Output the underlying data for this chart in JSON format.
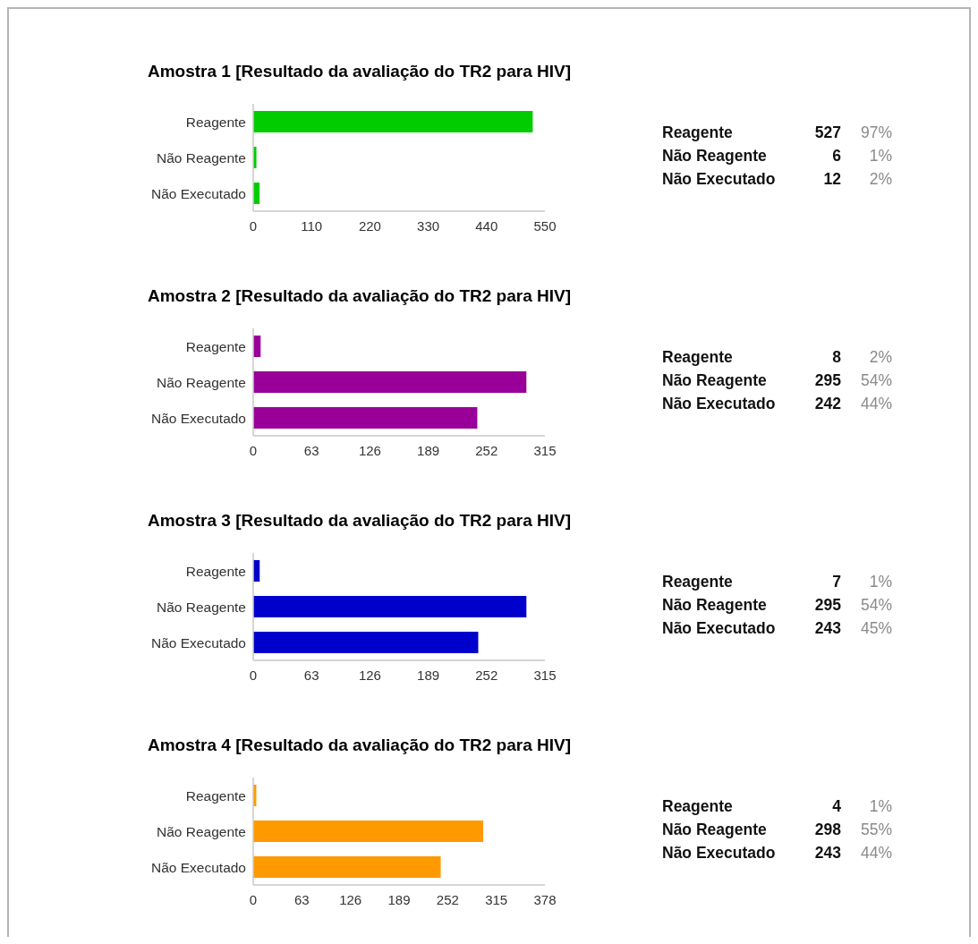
{
  "chart_data": [
    {
      "type": "bar",
      "orientation": "horizontal",
      "title": "Amostra 1 [Resultado da avaliação do TR2 para HIV]",
      "categories": [
        "Reagente",
        "Não Reagente",
        "Não Executado"
      ],
      "values": [
        527,
        6,
        12
      ],
      "color": "#00cc00",
      "xlim": [
        0,
        550
      ],
      "xticks": [
        0,
        110,
        220,
        330,
        440,
        550
      ],
      "data_labels": true,
      "annotations": [
        "97%",
        "1%",
        "2%"
      ]
    },
    {
      "type": "bar",
      "orientation": "horizontal",
      "title": "Amostra 2 [Resultado da avaliação do TR2 para HIV]",
      "categories": [
        "Reagente",
        "Não Reagente",
        "Não Executado"
      ],
      "values": [
        8,
        295,
        242
      ],
      "color": "#990099",
      "xlim": [
        0,
        315
      ],
      "xticks": [
        0,
        63,
        126,
        189,
        252,
        315
      ],
      "data_labels": true,
      "annotations": [
        "2%",
        "54%",
        "44%"
      ]
    },
    {
      "type": "bar",
      "orientation": "horizontal",
      "title": "Amostra 3 [Resultado da avaliação do TR2 para HIV]",
      "categories": [
        "Reagente",
        "Não Reagente",
        "Não Executado"
      ],
      "values": [
        7,
        295,
        243
      ],
      "color": "#0000cc",
      "xlim": [
        0,
        315
      ],
      "xticks": [
        0,
        63,
        126,
        189,
        252,
        315
      ],
      "data_labels": true,
      "annotations": [
        "1%",
        "54%",
        "45%"
      ]
    },
    {
      "type": "bar",
      "orientation": "horizontal",
      "title": "Amostra 4 [Resultado da avaliação do TR2 para HIV]",
      "categories": [
        "Reagente",
        "Não Reagente",
        "Não Executado"
      ],
      "values": [
        4,
        298,
        243
      ],
      "color": "#ff9900",
      "xlim": [
        0,
        378
      ],
      "xticks": [
        0,
        63,
        126,
        189,
        252,
        315,
        378
      ],
      "data_labels": true,
      "annotations": [
        "1%",
        "55%",
        "44%"
      ]
    }
  ]
}
